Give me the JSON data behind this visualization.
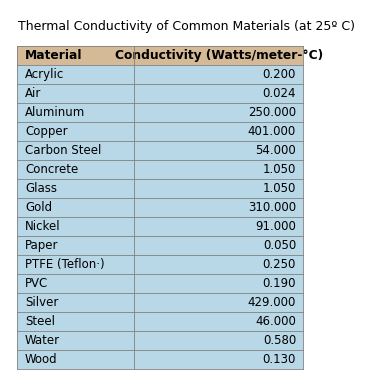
{
  "title": "Thermal Conductivity of Common Materials (at 25º C)",
  "col1_header": "Material",
  "col2_header": "Conductivity (Watts/meter-°C)",
  "rows": [
    [
      "Acrylic",
      "0.200"
    ],
    [
      "Air",
      "0.024"
    ],
    [
      "Aluminum",
      "250.000"
    ],
    [
      "Copper",
      "401.000"
    ],
    [
      "Carbon Steel",
      "54.000"
    ],
    [
      "Concrete",
      "1.050"
    ],
    [
      "Glass",
      "1.050"
    ],
    [
      "Gold",
      "310.000"
    ],
    [
      "Nickel",
      "91.000"
    ],
    [
      "Paper",
      "0.050"
    ],
    [
      "PTFE (Teflon·)",
      "0.250"
    ],
    [
      "PVC",
      "0.190"
    ],
    [
      "Silver",
      "429.000"
    ],
    [
      "Steel",
      "46.000"
    ],
    [
      "Water",
      "0.580"
    ],
    [
      "Wood",
      "0.130"
    ]
  ],
  "title_fontsize": 9.0,
  "header_fontsize": 8.8,
  "cell_fontsize": 8.5,
  "header_bg": "#D4BA96",
  "row_bg": "#B8D8E8",
  "border_color": "#808080",
  "title_color": "#000000",
  "text_color": "#000000"
}
